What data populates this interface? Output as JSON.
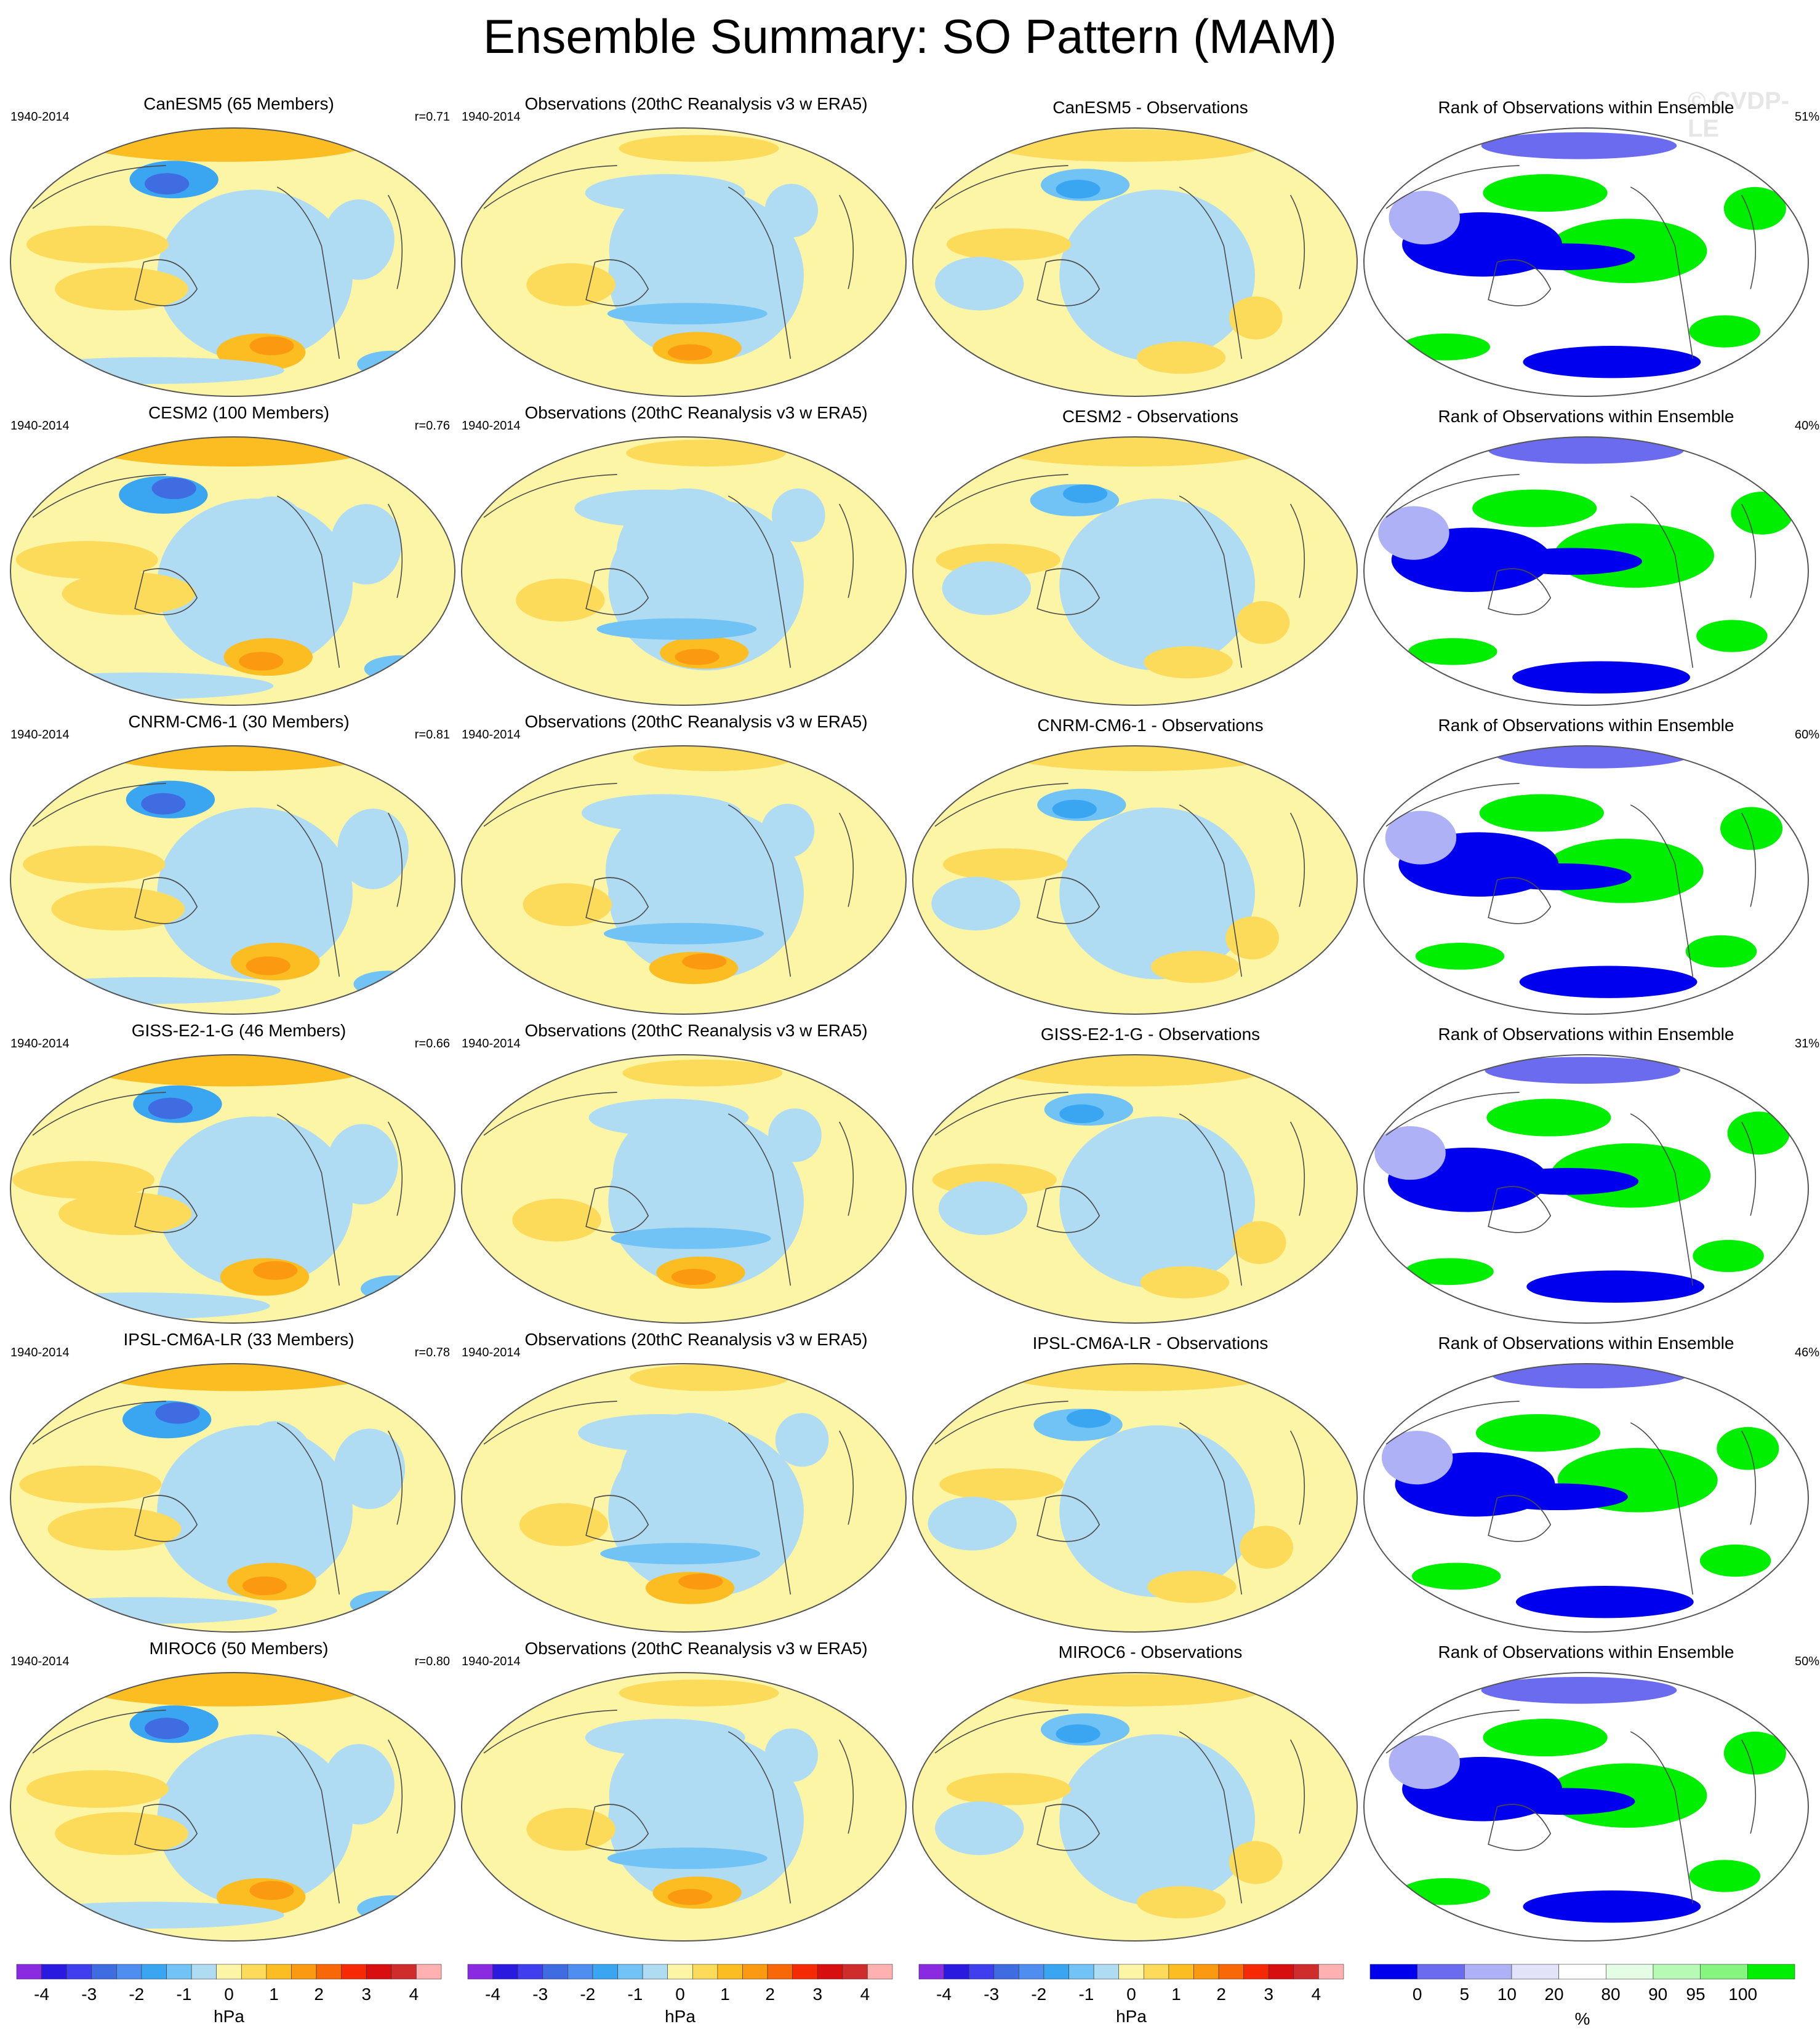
{
  "title": "Ensemble Summary: SO Pattern (MAM)",
  "watermark": "© CVDP-LE",
  "colors": {
    "hpa_scale": [
      "#8a2be2",
      "#2a1ae0",
      "#3f3ff0",
      "#3f6ce0",
      "#4f8ef0",
      "#3aa6f2",
      "#70c3f4",
      "#b0dcf3",
      "#fdf5a6",
      "#fddb5a",
      "#fbbd22",
      "#fb9a10",
      "#f86808",
      "#f52a05",
      "#d80f0f",
      "#cf2d2d",
      "#ffb0b0"
    ],
    "rank_scale": [
      "#0000ee",
      "#6b6bf0",
      "#aeb1f5",
      "#e2e2fb",
      "#ffffff",
      "#e5fde5",
      "#b8f9b5",
      "#86f580",
      "#00ee00"
    ],
    "land_outline": "#4a4a4a"
  },
  "chart_data": {
    "type": "heatmap",
    "projection": "Robinson",
    "rows": [
      {
        "model": "CanESM5",
        "model_panel_title": "CanESM5 (65 Members)",
        "period": "1940-2014",
        "obs_period": "1940-2014",
        "r_value": "r=0.71",
        "obs_panel_title": "Observations (20thC Reanalysis v3 w ERA5)",
        "diff_panel_title": "CanESM5 - Observations",
        "rank_panel_title": "Rank of Observations within Ensemble",
        "rank_pct": "51%"
      },
      {
        "model": "CESM2",
        "model_panel_title": "CESM2 (100 Members)",
        "period": "1940-2014",
        "obs_period": "1940-2014",
        "r_value": "r=0.76",
        "obs_panel_title": "Observations (20thC Reanalysis v3 w ERA5)",
        "diff_panel_title": "CESM2 - Observations",
        "rank_panel_title": "Rank of Observations within Ensemble",
        "rank_pct": "40%"
      },
      {
        "model": "CNRM-CM6-1",
        "model_panel_title": "CNRM-CM6-1 (30 Members)",
        "period": "1940-2014",
        "obs_period": "1940-2014",
        "r_value": "r=0.81",
        "obs_panel_title": "Observations (20thC Reanalysis v3 w ERA5)",
        "diff_panel_title": "CNRM-CM6-1 - Observations",
        "rank_panel_title": "Rank of Observations within Ensemble",
        "rank_pct": "60%"
      },
      {
        "model": "GISS-E2-1-G",
        "model_panel_title": "GISS-E2-1-G (46 Members)",
        "period": "1940-2014",
        "obs_period": "1940-2014",
        "r_value": "r=0.66",
        "obs_panel_title": "Observations (20thC Reanalysis v3 w ERA5)",
        "diff_panel_title": "GISS-E2-1-G - Observations",
        "rank_panel_title": "Rank of Observations within Ensemble",
        "rank_pct": "31%"
      },
      {
        "model": "IPSL-CM6A-LR",
        "model_panel_title": "IPSL-CM6A-LR (33 Members)",
        "period": "1940-2014",
        "obs_period": "1940-2014",
        "r_value": "r=0.78",
        "obs_panel_title": "Observations (20thC Reanalysis v3 w ERA5)",
        "diff_panel_title": "IPSL-CM6A-LR - Observations",
        "rank_panel_title": "Rank of Observations within Ensemble",
        "rank_pct": "46%"
      },
      {
        "model": "MIROC6",
        "model_panel_title": "MIROC6 (50 Members)",
        "period": "1940-2014",
        "obs_period": "1940-2014",
        "r_value": "r=0.80",
        "obs_panel_title": "Observations (20thC Reanalysis v3 w ERA5)",
        "diff_panel_title": "MIROC6 - Observations",
        "rank_panel_title": "Rank of Observations within Ensemble",
        "rank_pct": "50%"
      }
    ],
    "colorbars": [
      {
        "ticks": [
          "-4",
          "-3",
          "-2",
          "-1",
          "0",
          "1",
          "2",
          "3",
          "4"
        ],
        "unit": "hPa",
        "scale": "hpa"
      },
      {
        "ticks": [
          "-4",
          "-3",
          "-2",
          "-1",
          "0",
          "1",
          "2",
          "3",
          "4"
        ],
        "unit": "hPa",
        "scale": "hpa"
      },
      {
        "ticks": [
          "-4",
          "-3",
          "-2",
          "-1",
          "0",
          "1",
          "2",
          "3",
          "4"
        ],
        "unit": "hPa",
        "scale": "hpa"
      },
      {
        "ticks": [
          "0",
          "5",
          "10",
          "20",
          "80",
          "90",
          "95",
          "100"
        ],
        "unit": "%",
        "scale": "rank"
      }
    ]
  }
}
